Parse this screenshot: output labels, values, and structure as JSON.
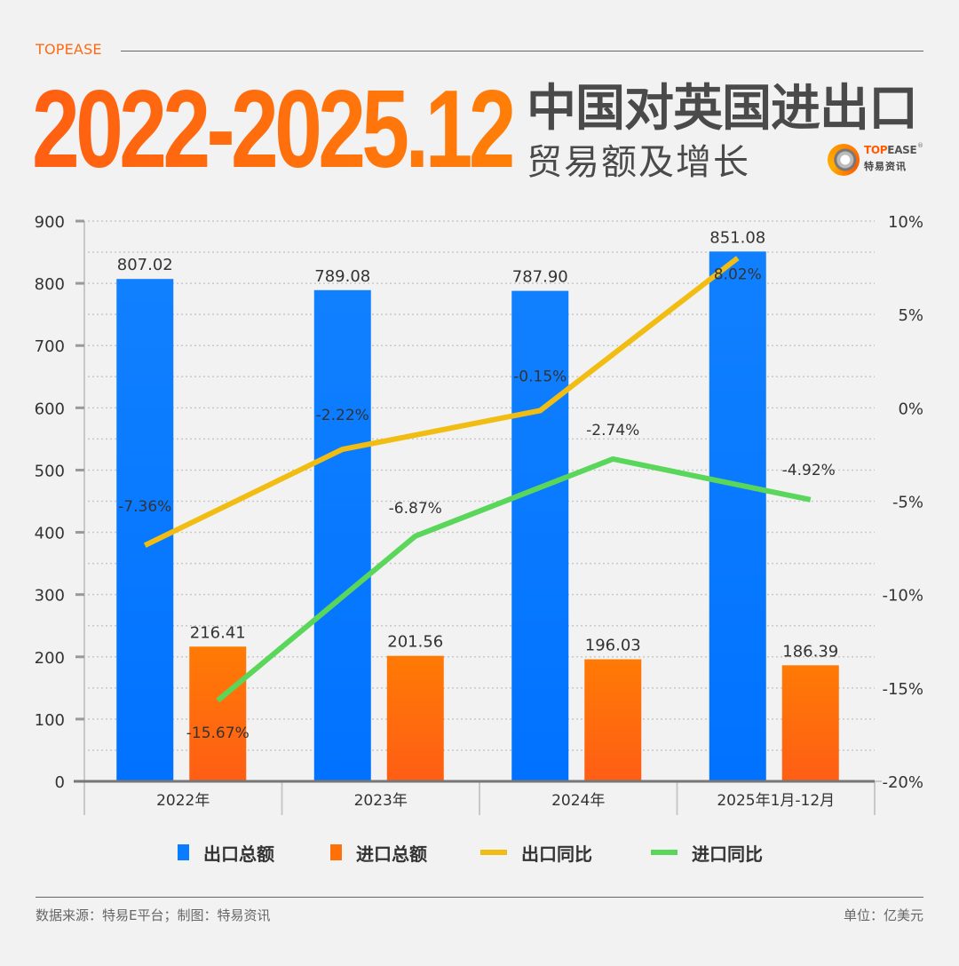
{
  "header": {
    "brand_top": "TOPEASE",
    "big_date": "2022-2025.12",
    "title_main": "中国对英国进出口",
    "title_sub": "贸易额及增长",
    "logo": {
      "en_a": "TOP",
      "en_b": "EASE",
      "reg": "®",
      "cn": "特易资讯"
    }
  },
  "colors": {
    "export_bar": "#0a7cff",
    "import_bar": "#ff7008",
    "export_yoy": "#f2bd12",
    "import_yoy": "#5ad75a",
    "accent": "#ff6a13"
  },
  "chart_data": {
    "type": "bar",
    "categories": [
      "2022年",
      "2023年",
      "2024年",
      "2025年1月-12月"
    ],
    "series": [
      {
        "name": "出口总额",
        "kind": "bar",
        "axis": "left",
        "values": [
          807.02,
          789.08,
          787.9,
          851.08
        ],
        "labels": [
          "807.02",
          "789.08",
          "787.90",
          "851.08"
        ]
      },
      {
        "name": "进口总额",
        "kind": "bar",
        "axis": "left",
        "values": [
          216.41,
          201.56,
          196.03,
          186.39
        ],
        "labels": [
          "216.41",
          "201.56",
          "196.03",
          "186.39"
        ]
      },
      {
        "name": "出口同比",
        "kind": "line",
        "axis": "right",
        "values": [
          -7.36,
          -2.22,
          -0.15,
          8.02
        ],
        "labels": [
          "-7.36%",
          "-2.22%",
          "-0.15%",
          "8.02%"
        ]
      },
      {
        "name": "进口同比",
        "kind": "line",
        "axis": "right",
        "values": [
          -15.67,
          -6.87,
          -2.74,
          -4.92
        ],
        "labels": [
          "-15.67%",
          "-6.87%",
          "-2.74%",
          "-4.92%"
        ]
      }
    ],
    "y_left": {
      "range": [
        0,
        900
      ],
      "ticks": [
        "0",
        "100",
        "200",
        "300",
        "400",
        "500",
        "600",
        "700",
        "800",
        "900"
      ]
    },
    "y_right": {
      "range": [
        -20,
        10
      ],
      "ticks": [
        "-20%",
        "-15%",
        "-10%",
        "-5%",
        "0%",
        "5%",
        "10%"
      ]
    },
    "grid": true,
    "legend_position": "bottom"
  },
  "footer": {
    "source": "数据来源：特易E平台；制图：特易资讯",
    "unit": "单位：亿美元"
  }
}
